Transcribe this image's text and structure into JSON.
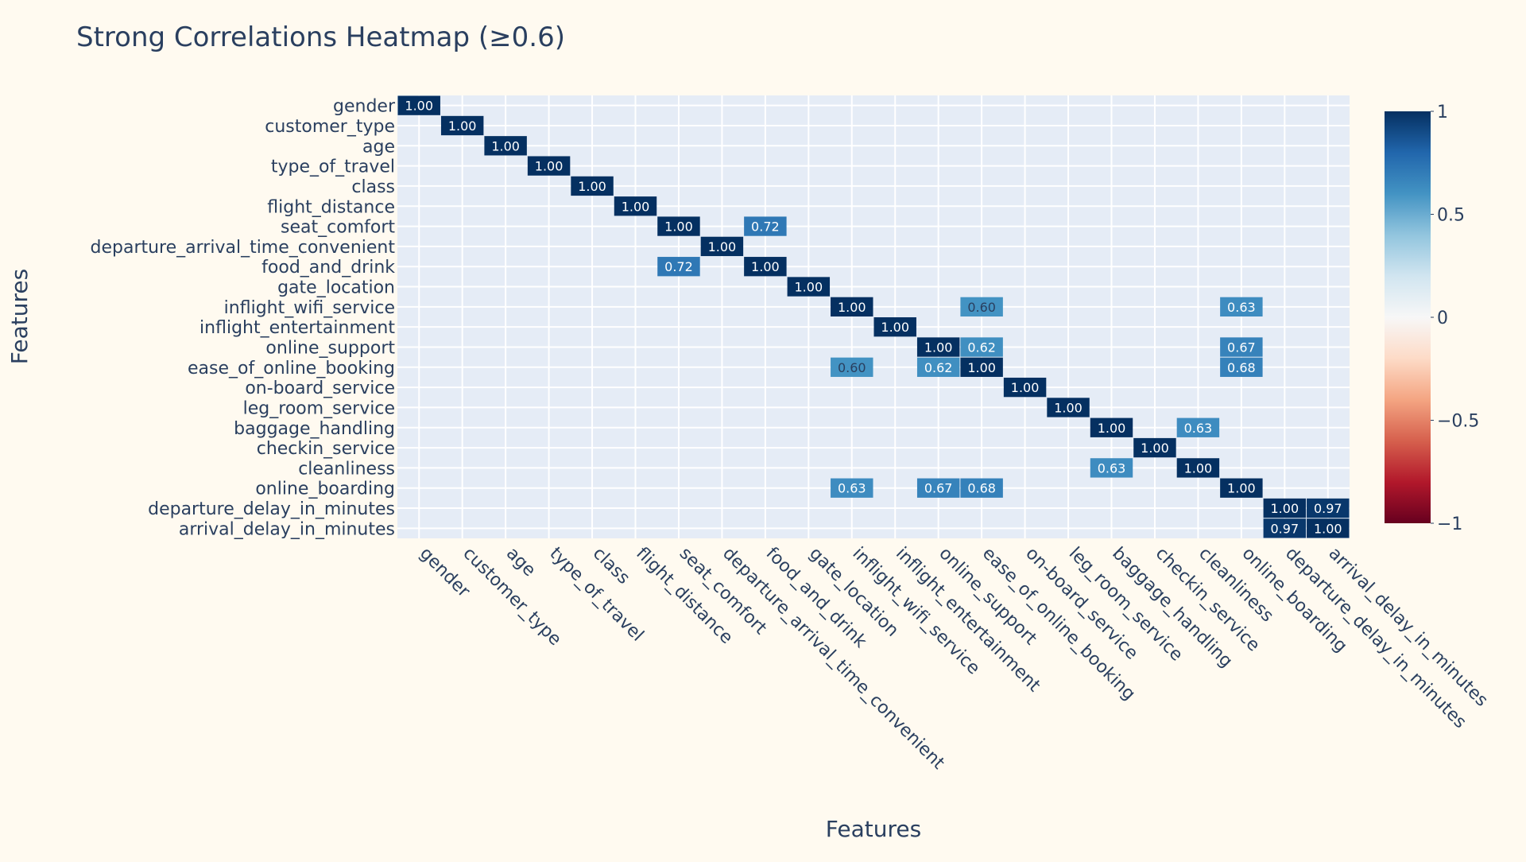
{
  "chart_data": {
    "type": "heatmap",
    "title": "Strong Correlations Heatmap (≥0.6)",
    "xlabel": "Features",
    "ylabel": "Features",
    "features": [
      "gender",
      "customer_type",
      "age",
      "type_of_travel",
      "class",
      "flight_distance",
      "seat_comfort",
      "departure_arrival_time_convenient",
      "food_and_drink",
      "gate_location",
      "inflight_wifi_service",
      "inflight_entertainment",
      "online_support",
      "ease_of_online_booking",
      "on-board_service",
      "leg_room_service",
      "baggage_handling",
      "checkin_service",
      "cleanliness",
      "online_boarding",
      "departure_delay_in_minutes",
      "arrival_delay_in_minutes"
    ],
    "threshold": 0.6,
    "cells": [
      {
        "row": "seat_comfort",
        "col": "food_and_drink",
        "value": 0.72
      },
      {
        "row": "food_and_drink",
        "col": "seat_comfort",
        "value": 0.72
      },
      {
        "row": "inflight_wifi_service",
        "col": "ease_of_online_booking",
        "value": 0.6
      },
      {
        "row": "inflight_wifi_service",
        "col": "online_boarding",
        "value": 0.63
      },
      {
        "row": "online_support",
        "col": "ease_of_online_booking",
        "value": 0.62
      },
      {
        "row": "online_support",
        "col": "online_boarding",
        "value": 0.67
      },
      {
        "row": "ease_of_online_booking",
        "col": "inflight_wifi_service",
        "value": 0.6
      },
      {
        "row": "ease_of_online_booking",
        "col": "online_support",
        "value": 0.62
      },
      {
        "row": "ease_of_online_booking",
        "col": "online_boarding",
        "value": 0.68
      },
      {
        "row": "baggage_handling",
        "col": "cleanliness",
        "value": 0.63
      },
      {
        "row": "cleanliness",
        "col": "baggage_handling",
        "value": 0.63
      },
      {
        "row": "online_boarding",
        "col": "inflight_wifi_service",
        "value": 0.63
      },
      {
        "row": "online_boarding",
        "col": "online_support",
        "value": 0.67
      },
      {
        "row": "online_boarding",
        "col": "ease_of_online_booking",
        "value": 0.68
      },
      {
        "row": "departure_delay_in_minutes",
        "col": "arrival_delay_in_minutes",
        "value": 0.97
      },
      {
        "row": "arrival_delay_in_minutes",
        "col": "departure_delay_in_minutes",
        "value": 0.97
      }
    ],
    "diagonal_value": 1.0,
    "value_format": "0.00",
    "colorscale": "RdBu",
    "zrange": [
      -1,
      1
    ],
    "colorbar": {
      "tick_values": [
        1,
        0.5,
        0,
        -0.5,
        -1
      ],
      "tick_labels": [
        "1",
        "0.5",
        "0",
        "−0.5",
        "−1"
      ]
    },
    "colors": {
      "background": "#fffaf0",
      "plot_background": "#e5ecf6",
      "grid": "#ffffff",
      "text": "#2a3f5f"
    },
    "grid": true,
    "legend": "colorbar-right"
  }
}
